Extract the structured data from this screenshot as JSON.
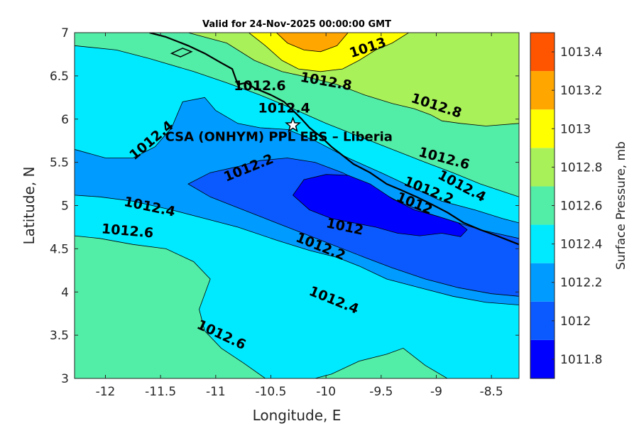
{
  "chart_data": {
    "type": "contour",
    "title": "Valid for 24-Nov-2025 00:00:00 GMT",
    "xlabel": "Longitude, E",
    "ylabel": "Latitude, N",
    "xlim": [
      -12.28,
      -8.25
    ],
    "ylim": [
      3,
      7
    ],
    "xticks": [
      -12,
      -11.5,
      -11,
      -10.5,
      -10,
      -9.5,
      -9,
      -8.5
    ],
    "yticks": [
      3,
      3.5,
      4,
      4.5,
      5,
      5.5,
      6,
      6.5,
      7
    ],
    "colorbar": {
      "label": "Surface Pressure, mb",
      "levels": [
        1011.8,
        1012,
        1012.2,
        1012.4,
        1012.6,
        1012.8,
        1013,
        1013.2,
        1013.4
      ],
      "colors": [
        "#0000ff",
        "#0a5aff",
        "#009bff",
        "#00eaff",
        "#52eda6",
        "#a8f159",
        "#ffff00",
        "#ffa600",
        "#ff5500"
      ]
    },
    "contour_labels": [
      {
        "text": "1013",
        "lon": -9.62,
        "lat": 6.82,
        "angle": -18
      },
      {
        "text": "1012.8",
        "lon": -10.0,
        "lat": 6.43,
        "angle": 10
      },
      {
        "text": "1012.8",
        "lon": -9.0,
        "lat": 6.15,
        "angle": 18
      },
      {
        "text": "1012.6",
        "lon": -10.6,
        "lat": 6.38,
        "angle": 0
      },
      {
        "text": "1012.4",
        "lon": -10.38,
        "lat": 6.12,
        "angle": 0
      },
      {
        "text": "1012.4",
        "lon": -11.58,
        "lat": 5.75,
        "angle": -40
      },
      {
        "text": "1012.6",
        "lon": -8.93,
        "lat": 5.54,
        "angle": 15
      },
      {
        "text": "1012.4",
        "lon": -8.77,
        "lat": 5.22,
        "angle": 28
      },
      {
        "text": "1012.2",
        "lon": -10.7,
        "lat": 5.43,
        "angle": -22
      },
      {
        "text": "1012.2",
        "lon": -9.07,
        "lat": 5.17,
        "angle": 22
      },
      {
        "text": "1012",
        "lon": -9.2,
        "lat": 5.02,
        "angle": 22
      },
      {
        "text": "1012.4",
        "lon": -11.6,
        "lat": 4.98,
        "angle": 12
      },
      {
        "text": "1012.6",
        "lon": -11.8,
        "lat": 4.7,
        "angle": 5
      },
      {
        "text": "1012",
        "lon": -9.83,
        "lat": 4.75,
        "angle": 12
      },
      {
        "text": "1012.2",
        "lon": -10.05,
        "lat": 4.52,
        "angle": 22
      },
      {
        "text": "1012.4",
        "lon": -9.93,
        "lat": 3.9,
        "angle": 22
      },
      {
        "text": "1012.6",
        "lon": -10.95,
        "lat": 3.5,
        "angle": 25
      }
    ],
    "annotation": {
      "marker": "star",
      "lon": -10.3,
      "lat": 5.93,
      "text": "CSA (ONHYM) PPL EBS  – Liberia"
    }
  }
}
